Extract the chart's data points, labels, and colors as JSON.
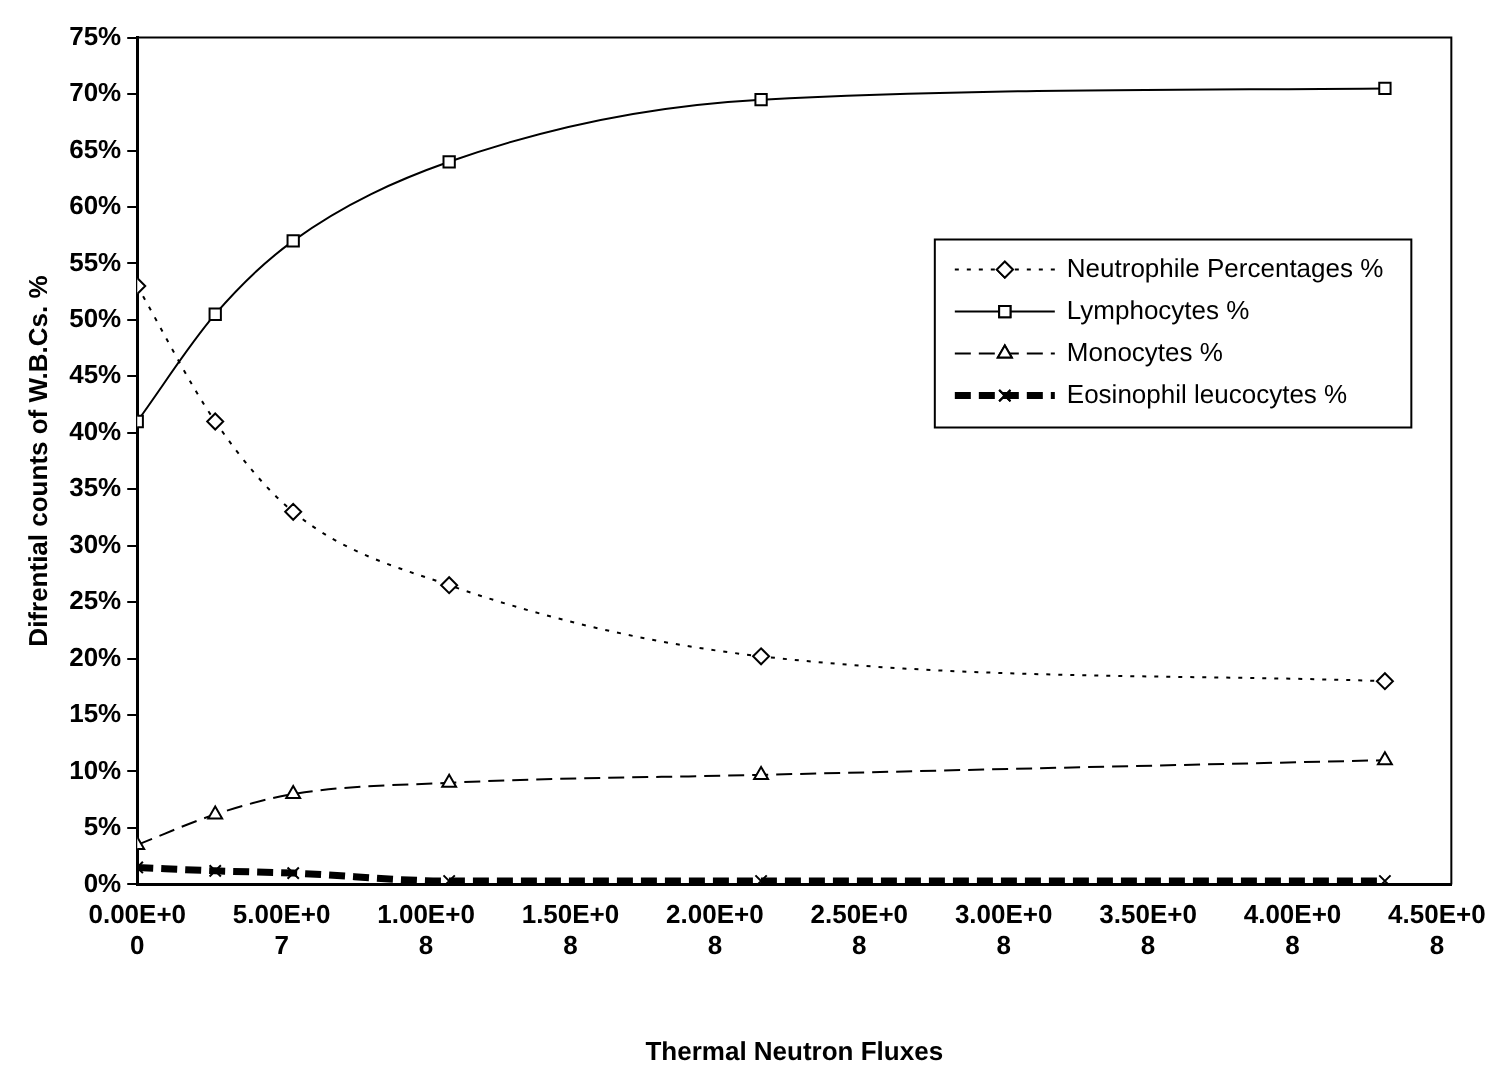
{
  "chart_data": {
    "type": "line",
    "xlabel": "Thermal Neutron Fluxes",
    "ylabel": "Difrential counts of W.B.Cs. %",
    "x": [
      0,
      27000000,
      54000000,
      108000000,
      216000000,
      432000000
    ],
    "series": [
      {
        "name": "Neutrophile Percentages %",
        "color": "#000000",
        "values": [
          53,
          41,
          33,
          26.5,
          20.2,
          18
        ],
        "marker": "diamond",
        "line_style": "dotted"
      },
      {
        "name": "Lymphocytes %",
        "color": "#000000",
        "values": [
          41,
          50.5,
          57,
          64,
          69.5,
          70.5
        ],
        "marker": "square",
        "line_style": "solid"
      },
      {
        "name": "Monocytes %",
        "color": "#000000",
        "values": [
          3.5,
          6.2,
          8,
          9,
          9.7,
          11
        ],
        "marker": "triangle",
        "line_style": "dashed"
      },
      {
        "name": "Eosinophil leucocytes %",
        "color": "#000000",
        "values": [
          1.5,
          1.2,
          1,
          0.3,
          0.3,
          0.3
        ],
        "marker": "cross",
        "line_style": "dashed"
      }
    ],
    "xlim": [
      0,
      455000000
    ],
    "xticks": [
      {
        "value": 0,
        "label": "0.00E+00"
      },
      {
        "value": 50000000,
        "label": "5.00E+07"
      },
      {
        "value": 100000000,
        "label": "1.00E+08"
      },
      {
        "value": 150000000,
        "label": "1.50E+08"
      },
      {
        "value": 200000000,
        "label": "2.00E+08"
      },
      {
        "value": 250000000,
        "label": "2.50E+08"
      },
      {
        "value": 300000000,
        "label": "3.00E+08"
      },
      {
        "value": 350000000,
        "label": "3.50E+08"
      },
      {
        "value": 400000000,
        "label": "4.00E+08"
      },
      {
        "value": 450000000,
        "label": "4.50E+08"
      }
    ],
    "ylim": [
      0,
      75
    ],
    "yticks": [
      {
        "value": 0,
        "label": "0%"
      },
      {
        "value": 5,
        "label": "5%"
      },
      {
        "value": 10,
        "label": "10%"
      },
      {
        "value": 15,
        "label": "15%"
      },
      {
        "value": 20,
        "label": "20%"
      },
      {
        "value": 25,
        "label": "25%"
      },
      {
        "value": 30,
        "label": "30%"
      },
      {
        "value": 35,
        "label": "35%"
      },
      {
        "value": 40,
        "label": "40%"
      },
      {
        "value": 45,
        "label": "45%"
      },
      {
        "value": 50,
        "label": "50%"
      },
      {
        "value": 55,
        "label": "55%"
      },
      {
        "value": 60,
        "label": "60%"
      },
      {
        "value": 65,
        "label": "65%"
      },
      {
        "value": 70,
        "label": "70%"
      },
      {
        "value": 75,
        "label": "75%"
      }
    ],
    "grid": false,
    "legend": "right"
  }
}
